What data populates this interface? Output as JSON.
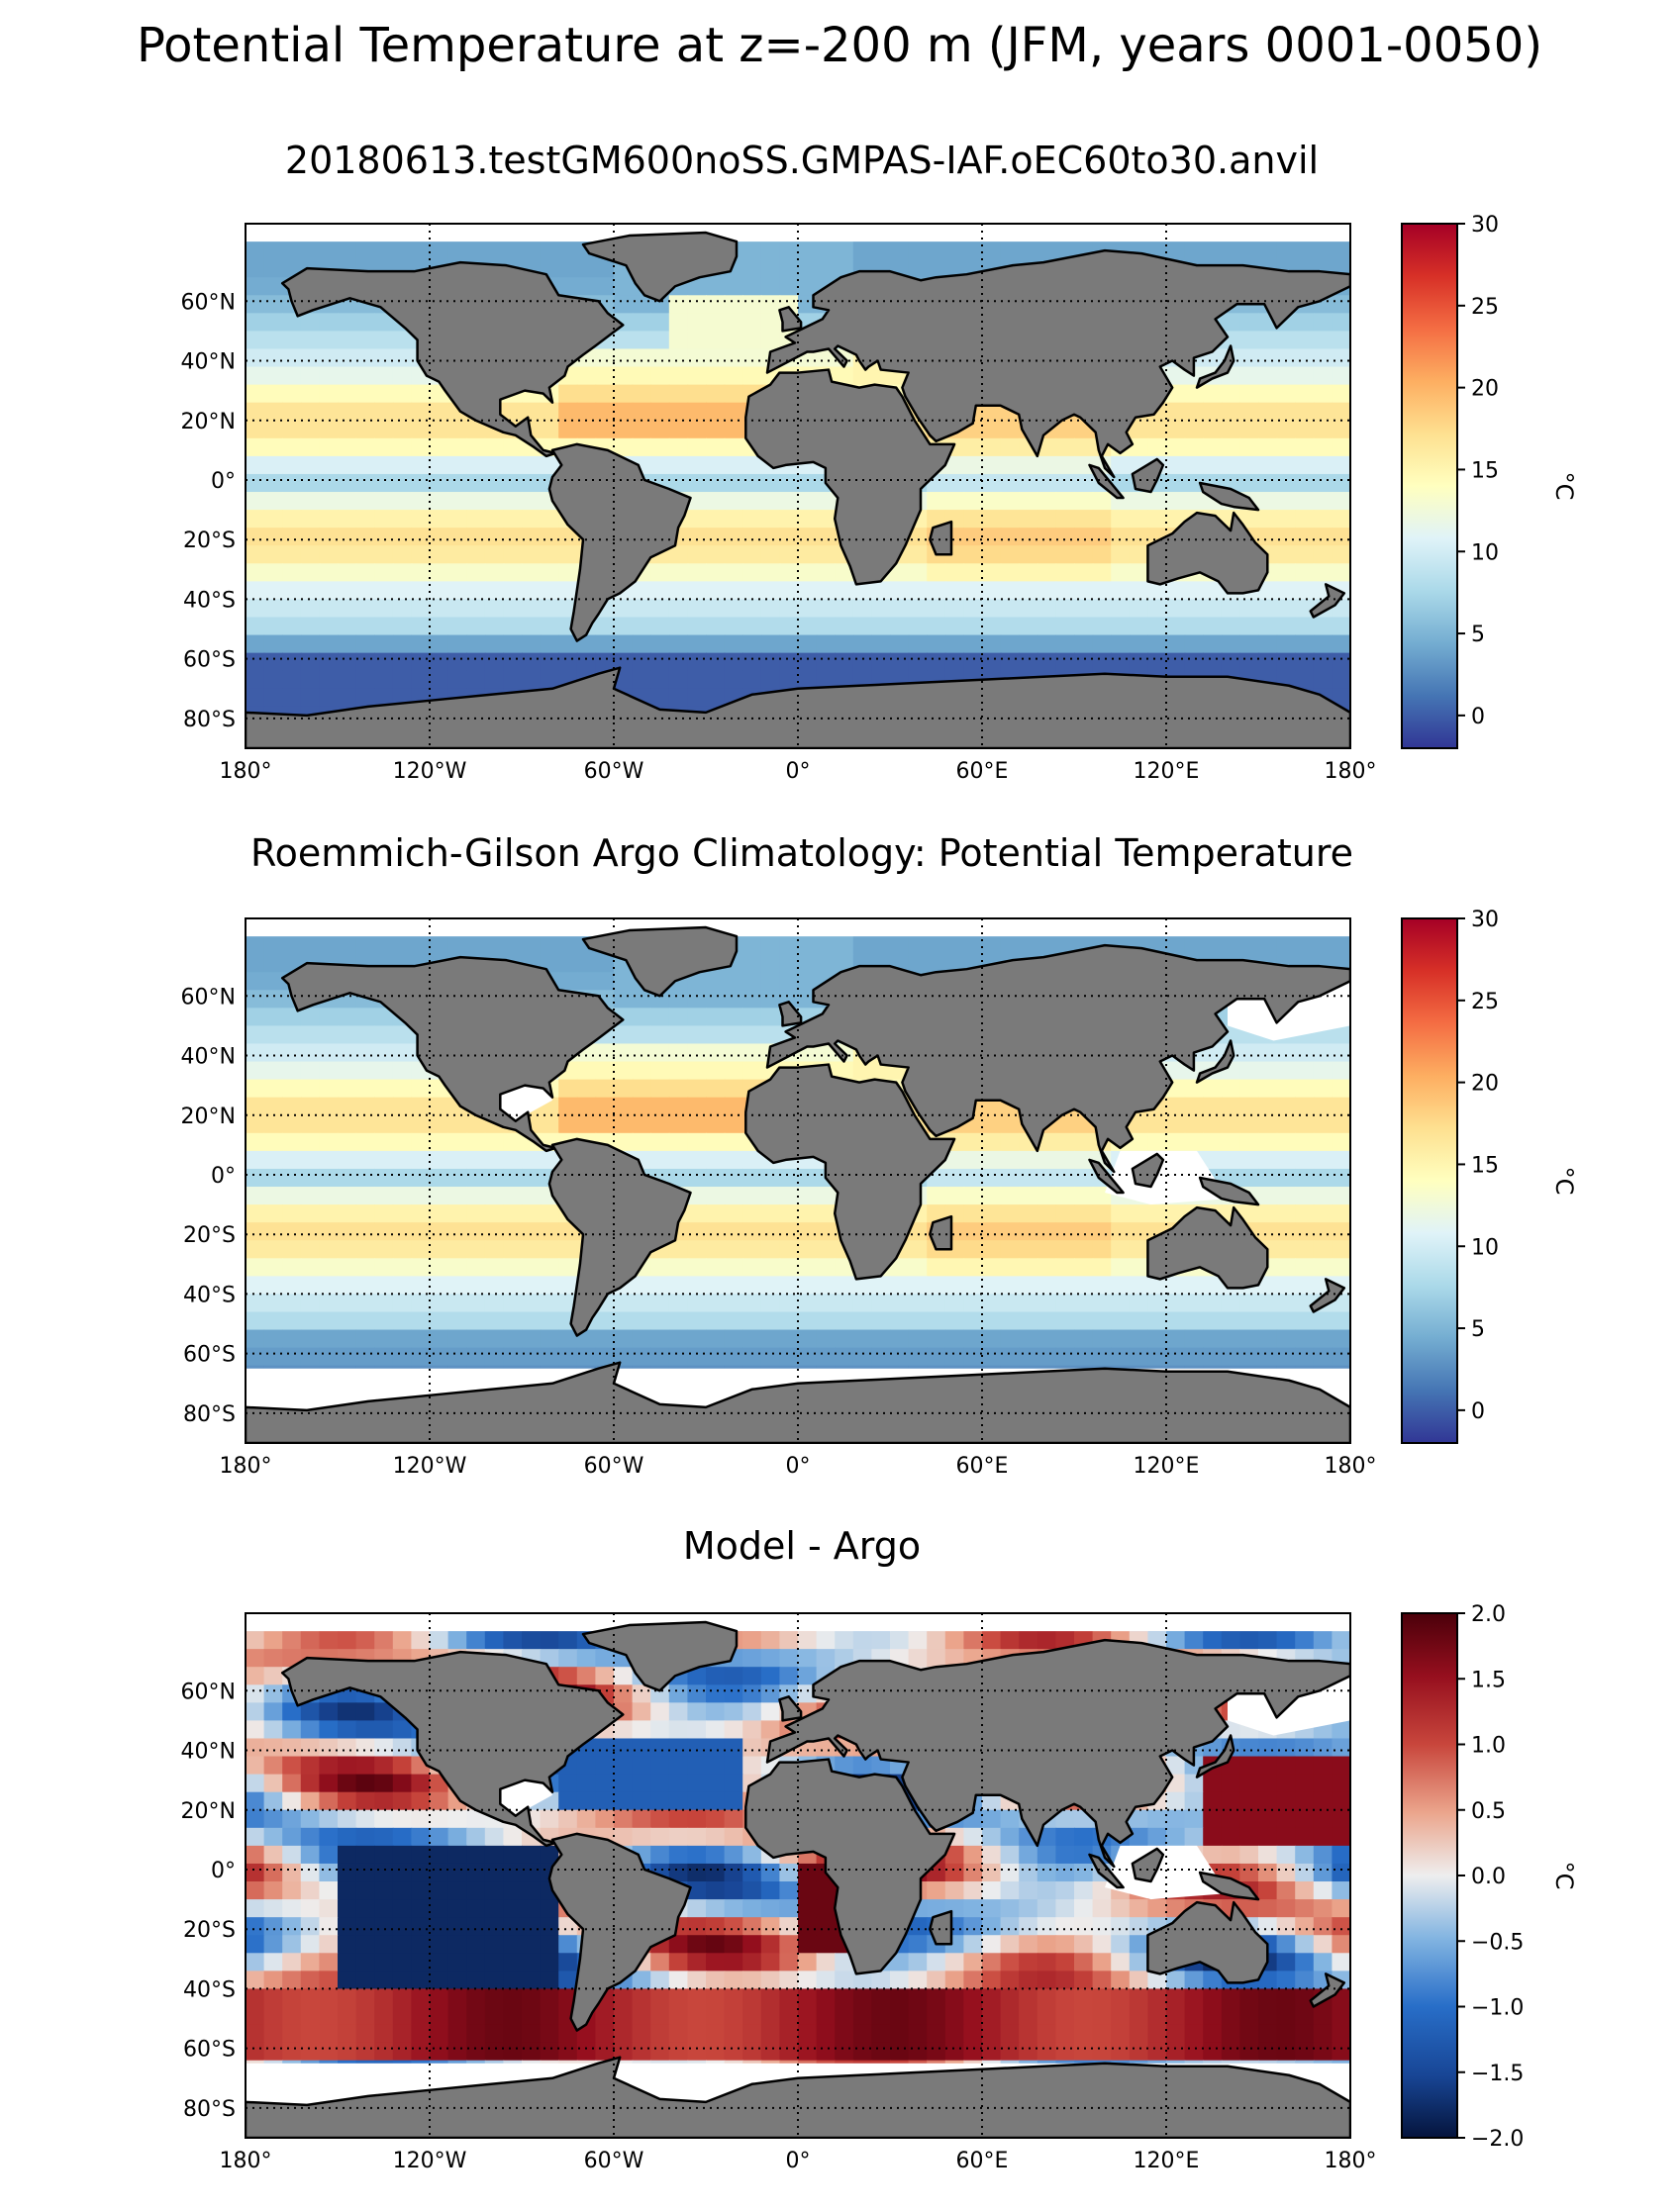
{
  "figure": {
    "suptitle": "Potential Temperature at z=-200 m (JFM, years 0001-0050)"
  },
  "colors": {
    "land": "#7a7a7a",
    "nodata": "#ffffff",
    "coast": "#000000"
  },
  "panels": [
    {
      "id": "model",
      "title": "20180613.testGM600noSS.GMPAS-IAF.oEC60to30.anvil",
      "field": "model",
      "lon_ticks": [
        "180°",
        "120°W",
        "60°W",
        "0°",
        "60°E",
        "120°E",
        "180°"
      ],
      "lat_ticks": [
        "60°N",
        "40°N",
        "20°N",
        "0°",
        "20°S",
        "40°S",
        "60°S",
        "80°S"
      ],
      "colorbar": {
        "label": "°C",
        "colormap": "RdYlBu_r",
        "range": [
          -2,
          30
        ],
        "ticks": [
          "30",
          "25",
          "20",
          "15",
          "10",
          "5",
          "0"
        ],
        "tick_values": [
          30,
          25,
          20,
          15,
          10,
          5,
          0
        ]
      }
    },
    {
      "id": "obs",
      "title": "Roemmich-Gilson Argo Climatology: Potential Temperature",
      "field": "obs",
      "lon_ticks": [
        "180°",
        "120°W",
        "60°W",
        "0°",
        "60°E",
        "120°E",
        "180°"
      ],
      "lat_ticks": [
        "60°N",
        "40°N",
        "20°N",
        "0°",
        "20°S",
        "40°S",
        "60°S",
        "80°S"
      ],
      "colorbar": {
        "label": "°C",
        "colormap": "RdYlBu_r",
        "range": [
          -2,
          30
        ],
        "ticks": [
          "30",
          "25",
          "20",
          "15",
          "10",
          "5",
          "0"
        ],
        "tick_values": [
          30,
          25,
          20,
          15,
          10,
          5,
          0
        ]
      }
    },
    {
      "id": "bias",
      "title": "Model - Argo",
      "field": "bias",
      "lon_ticks": [
        "180°",
        "120°W",
        "60°W",
        "0°",
        "60°E",
        "120°E",
        "180°"
      ],
      "lat_ticks": [
        "60°N",
        "40°N",
        "20°N",
        "0°",
        "20°S",
        "40°S",
        "60°S",
        "80°S"
      ],
      "colorbar": {
        "label": "°C",
        "colormap": "RdBu_r",
        "range": [
          -2.0,
          2.0
        ],
        "ticks": [
          "2.0",
          "1.5",
          "1.0",
          "0.5",
          "0.0",
          "−0.5",
          "−1.0",
          "−1.5",
          "−2.0"
        ],
        "tick_values": [
          2.0,
          1.5,
          1.0,
          0.5,
          0.0,
          -0.5,
          -1.0,
          -1.5,
          -2.0
        ]
      }
    }
  ]
}
